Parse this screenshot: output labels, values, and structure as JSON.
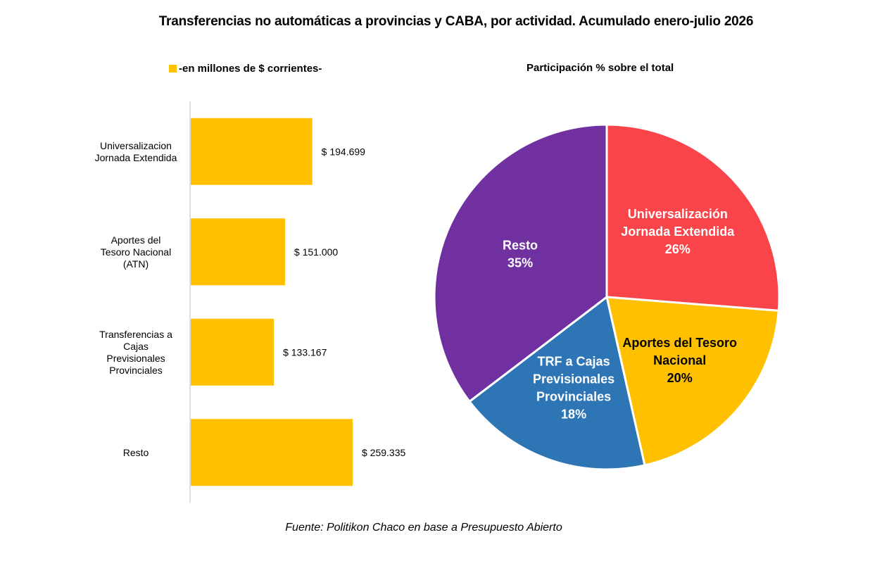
{
  "title": "Transferencias no automáticas a provincias y CABA, por actividad. Acumulado enero-julio 2026",
  "source": "Fuente: Politikon Chaco en base a Presupuesto Abierto",
  "chart_data": [
    {
      "type": "bar",
      "orientation": "horizontal",
      "title": "",
      "legend": "-en millones de $ corrientes-",
      "legend_position": "top-left",
      "color": "#FFC000",
      "categories": [
        [
          "Universalizacion",
          "Jornada Extendida"
        ],
        [
          "Aportes del",
          "Tesoro Nacional",
          "(ATN)"
        ],
        [
          "Transferencias a",
          "Cajas",
          "Previsionales",
          "Provinciales"
        ],
        [
          "Resto"
        ]
      ],
      "values": [
        194699,
        151000,
        133167,
        259335
      ],
      "data_labels": [
        "$ 194.699",
        "$ 151.000",
        "$ 133.167",
        "$ 259.335"
      ],
      "grid": false
    },
    {
      "type": "pie",
      "title": "Participación % sobre el total",
      "slices": [
        {
          "label": [
            "Universalización",
            "Jornada Extendida",
            "26%"
          ],
          "value": 26,
          "color": "#F94449",
          "text_color": "#FFFFFF"
        },
        {
          "label": [
            "Aportes del Tesoro",
            "Nacional",
            "20%"
          ],
          "value": 20,
          "color": "#FFC000",
          "text_color": "#000000"
        },
        {
          "label": [
            "TRF a Cajas",
            "Previsionales",
            "Provinciales",
            "18%"
          ],
          "value": 18,
          "color": "#2E75B6",
          "text_color": "#FFFFFF"
        },
        {
          "label": [
            "Resto",
            "35%"
          ],
          "value": 35,
          "color": "#7030A0",
          "text_color": "#FFFFFF"
        }
      ]
    }
  ]
}
